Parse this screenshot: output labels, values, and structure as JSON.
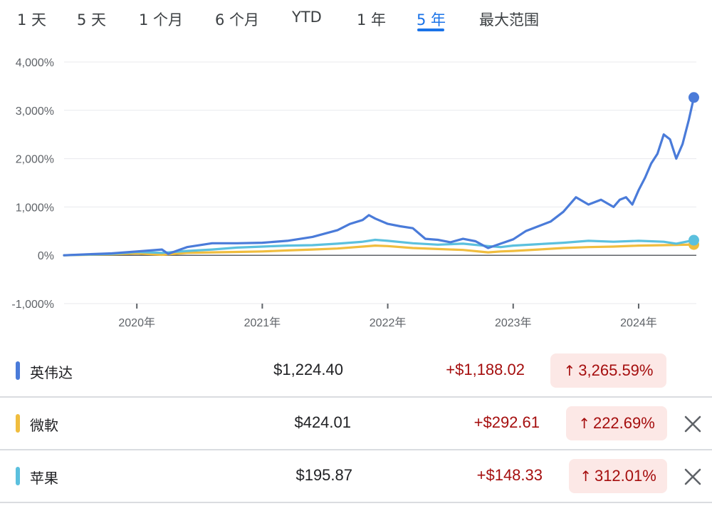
{
  "tabs": [
    {
      "label": "1 天",
      "active": false
    },
    {
      "label": "5 天",
      "active": false
    },
    {
      "label": "1 个月",
      "active": false
    },
    {
      "label": "6 个月",
      "active": false
    },
    {
      "label": "YTD",
      "active": false
    },
    {
      "label": "1 年",
      "active": false
    },
    {
      "label": "5 年",
      "active": true
    },
    {
      "label": "最大范围",
      "active": false
    }
  ],
  "colors": {
    "nvidia": "#4a7bd9",
    "microsoft": "#f0bd3e",
    "apple": "#5bc0de",
    "accent": "#1a73e8",
    "loss_red": "#a50e0e",
    "pill_bg": "#fce8e6"
  },
  "chart_data": {
    "type": "line",
    "ylim": [
      -1000,
      4000
    ],
    "yticks": [
      -1000,
      0,
      1000,
      2000,
      3000,
      4000
    ],
    "ytick_labels": [
      "-1,000%",
      "0%",
      "1,000%",
      "2,000%",
      "3,000%",
      "4,000%"
    ],
    "xlim": [
      2019.42,
      2024.46
    ],
    "xticks": [
      2020,
      2021,
      2022,
      2023,
      2024
    ],
    "xtick_labels": [
      "2020年",
      "2021年",
      "2022年",
      "2023年",
      "2024年"
    ],
    "grid": true,
    "series": [
      {
        "name": "英伟达",
        "color": "#4a7bd9",
        "x": [
          2019.42,
          2019.6,
          2019.8,
          2020.0,
          2020.2,
          2020.25,
          2020.4,
          2020.6,
          2020.8,
          2021.0,
          2021.2,
          2021.4,
          2021.5,
          2021.6,
          2021.7,
          2021.8,
          2021.85,
          2021.9,
          2022.0,
          2022.1,
          2022.2,
          2022.3,
          2022.4,
          2022.5,
          2022.6,
          2022.7,
          2022.8,
          2022.9,
          2023.0,
          2023.1,
          2023.2,
          2023.3,
          2023.4,
          2023.5,
          2023.6,
          2023.7,
          2023.8,
          2023.85,
          2023.9,
          2023.95,
          2024.0,
          2024.05,
          2024.1,
          2024.15,
          2024.2,
          2024.25,
          2024.3,
          2024.35,
          2024.4,
          2024.44
        ],
        "y": [
          0,
          20,
          40,
          80,
          120,
          30,
          170,
          250,
          250,
          260,
          300,
          380,
          450,
          520,
          650,
          730,
          830,
          760,
          650,
          600,
          560,
          340,
          320,
          270,
          340,
          290,
          150,
          240,
          330,
          500,
          600,
          700,
          900,
          1200,
          1050,
          1150,
          1000,
          1150,
          1200,
          1050,
          1350,
          1600,
          1900,
          2100,
          2500,
          2400,
          2000,
          2300,
          2800,
          3266
        ]
      },
      {
        "name": "微軟",
        "color": "#f0bd3e",
        "x": [
          2019.42,
          2019.8,
          2020.0,
          2020.2,
          2020.4,
          2020.6,
          2020.8,
          2021.0,
          2021.2,
          2021.4,
          2021.6,
          2021.8,
          2021.9,
          2022.0,
          2022.2,
          2022.4,
          2022.6,
          2022.8,
          2022.9,
          2023.0,
          2023.2,
          2023.4,
          2023.6,
          2023.8,
          2024.0,
          2024.2,
          2024.44
        ],
        "y": [
          0,
          20,
          40,
          10,
          50,
          60,
          70,
          80,
          100,
          120,
          140,
          180,
          200,
          190,
          150,
          130,
          110,
          60,
          80,
          90,
          120,
          150,
          170,
          180,
          200,
          210,
          223
        ]
      },
      {
        "name": "苹果",
        "color": "#5bc0de",
        "x": [
          2019.42,
          2019.8,
          2020.0,
          2020.2,
          2020.4,
          2020.6,
          2020.8,
          2021.0,
          2021.2,
          2021.4,
          2021.6,
          2021.8,
          2021.9,
          2022.0,
          2022.2,
          2022.4,
          2022.6,
          2022.8,
          2022.9,
          2023.0,
          2023.2,
          2023.4,
          2023.6,
          2023.8,
          2024.0,
          2024.2,
          2024.3,
          2024.44
        ],
        "y": [
          0,
          30,
          70,
          50,
          90,
          120,
          160,
          180,
          200,
          210,
          240,
          280,
          320,
          300,
          250,
          220,
          240,
          190,
          170,
          200,
          230,
          260,
          300,
          280,
          300,
          280,
          240,
          312
        ]
      }
    ]
  },
  "rows": [
    {
      "name": "英伟达",
      "price": "$1,224.40",
      "change": "+$1,188.02",
      "arrow": "↑",
      "pct": "3,265.59%",
      "closable": false,
      "color": "#4a7bd9"
    },
    {
      "name": "微軟",
      "price": "$424.01",
      "change": "+$292.61",
      "arrow": "↑",
      "pct": "222.69%",
      "closable": true,
      "color": "#f0bd3e"
    },
    {
      "name": "苹果",
      "price": "$195.87",
      "change": "+$148.33",
      "arrow": "↑",
      "pct": "312.01%",
      "closable": true,
      "color": "#5bc0de"
    }
  ]
}
